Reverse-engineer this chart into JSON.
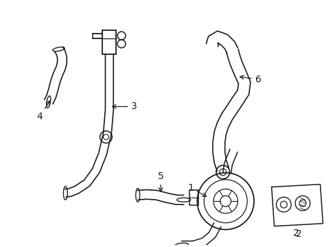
{
  "background_color": "#ffffff",
  "line_color": "#1a1a1a",
  "figsize": [
    4.89,
    3.6
  ],
  "dpi": 100,
  "label_fontsize": 10
}
